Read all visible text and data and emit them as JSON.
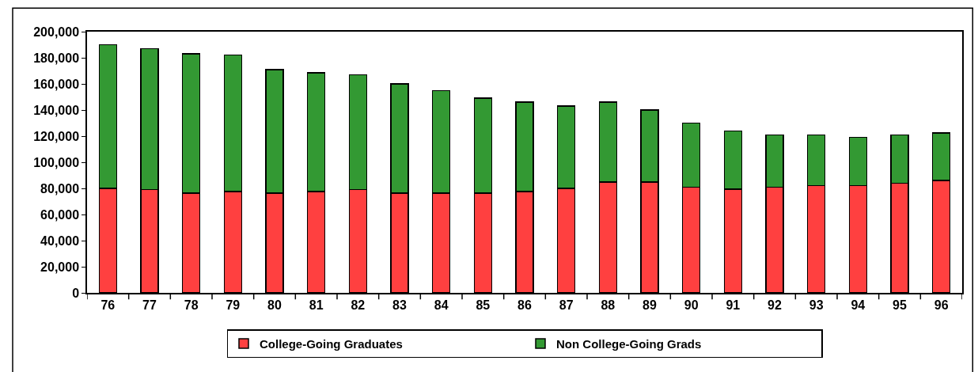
{
  "chart_data": {
    "type": "bar",
    "stacked": true,
    "categories": [
      "76",
      "77",
      "78",
      "79",
      "80",
      "81",
      "82",
      "83",
      "84",
      "85",
      "86",
      "87",
      "88",
      "89",
      "90",
      "91",
      "92",
      "93",
      "94",
      "95",
      "96"
    ],
    "series": [
      {
        "name": "College-Going Graduates",
        "color": "#ff4040",
        "values": [
          80000,
          79000,
          76500,
          77500,
          76500,
          77500,
          79000,
          76500,
          76500,
          76500,
          77500,
          80000,
          85000,
          85000,
          81000,
          79500,
          81000,
          82000,
          82000,
          84000,
          86000
        ]
      },
      {
        "name": "Non College-Going Grads",
        "color": "#339933",
        "values": [
          110000,
          108000,
          106500,
          104500,
          94500,
          91000,
          88000,
          83500,
          78500,
          72500,
          68500,
          63000,
          61000,
          55000,
          49000,
          44500,
          40000,
          39000,
          37000,
          37000,
          36500
        ]
      }
    ],
    "ylim": [
      0,
      200000
    ],
    "yticks": [
      {
        "value": 0,
        "label": "0"
      },
      {
        "value": 20000,
        "label": "20,000"
      },
      {
        "value": 40000,
        "label": "40,000"
      },
      {
        "value": 60000,
        "label": "60,000"
      },
      {
        "value": 80000,
        "label": "80,000"
      },
      {
        "value": 100000,
        "label": "100,000"
      },
      {
        "value": 120000,
        "label": "120,000"
      },
      {
        "value": 140000,
        "label": "140,000"
      },
      {
        "value": 160000,
        "label": "160,000"
      },
      {
        "value": 180000,
        "label": "180,000"
      },
      {
        "value": 200000,
        "label": "200,000"
      }
    ],
    "legend": "bottom"
  }
}
